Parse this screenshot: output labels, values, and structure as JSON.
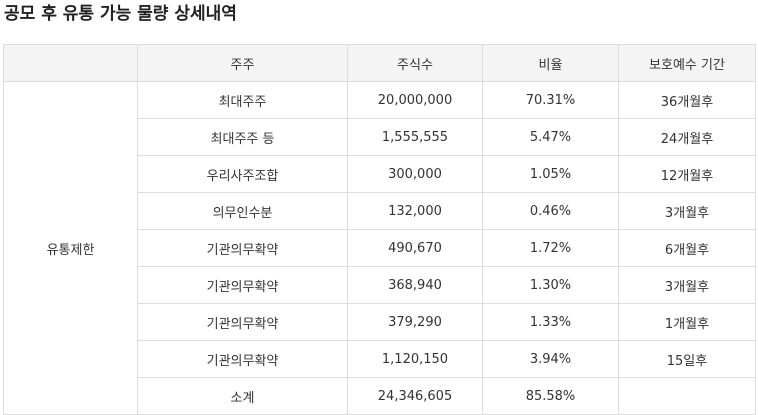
{
  "title": "공모 후 유통 가능 물량 상세내역",
  "table": {
    "headers": [
      "",
      "주주",
      "주식수",
      "비율",
      "보호예수 기간"
    ],
    "group_label": "유통제한",
    "rows": [
      {
        "holder": "최대주주",
        "shares": "20,000,000",
        "ratio": "70.31%",
        "period": "36개월후"
      },
      {
        "holder": "최대주주 등",
        "shares": "1,555,555",
        "ratio": "5.47%",
        "period": "24개월후"
      },
      {
        "holder": "우리사주조합",
        "shares": "300,000",
        "ratio": "1.05%",
        "period": "12개월후"
      },
      {
        "holder": "의무인수분",
        "shares": "132,000",
        "ratio": "0.46%",
        "period": "3개월후"
      },
      {
        "holder": "기관의무확약",
        "shares": "490,670",
        "ratio": "1.72%",
        "period": "6개월후"
      },
      {
        "holder": "기관의무확약",
        "shares": "368,940",
        "ratio": "1.30%",
        "period": "3개월후"
      },
      {
        "holder": "기관의무확약",
        "shares": "379,290",
        "ratio": "1.33%",
        "period": "1개월후"
      },
      {
        "holder": "기관의무확약",
        "shares": "1,120,150",
        "ratio": "3.94%",
        "period": "15일후"
      },
      {
        "holder": "소계",
        "shares": "24,346,605",
        "ratio": "85.58%",
        "period": ""
      }
    ]
  }
}
